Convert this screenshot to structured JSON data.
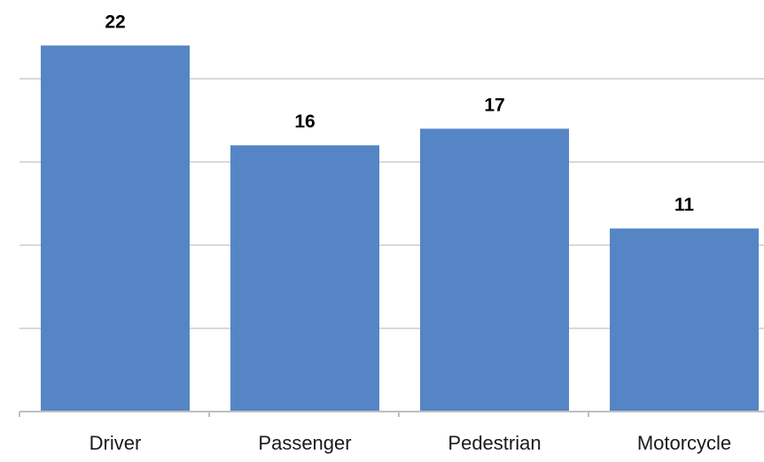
{
  "chart_data": {
    "type": "bar",
    "categories": [
      "Driver",
      "Passenger",
      "Pedestrian",
      "Motorcycle"
    ],
    "values": [
      22,
      16,
      17,
      11
    ],
    "data_labels": [
      "22",
      "16",
      "17",
      "11"
    ],
    "title": "",
    "xlabel": "",
    "ylabel": "",
    "ylim": [
      0,
      25
    ],
    "y_gridline_step": 5,
    "grid": true,
    "y_tick_labels_shown": false,
    "legend": "none",
    "bar_color": "#5585c5"
  }
}
